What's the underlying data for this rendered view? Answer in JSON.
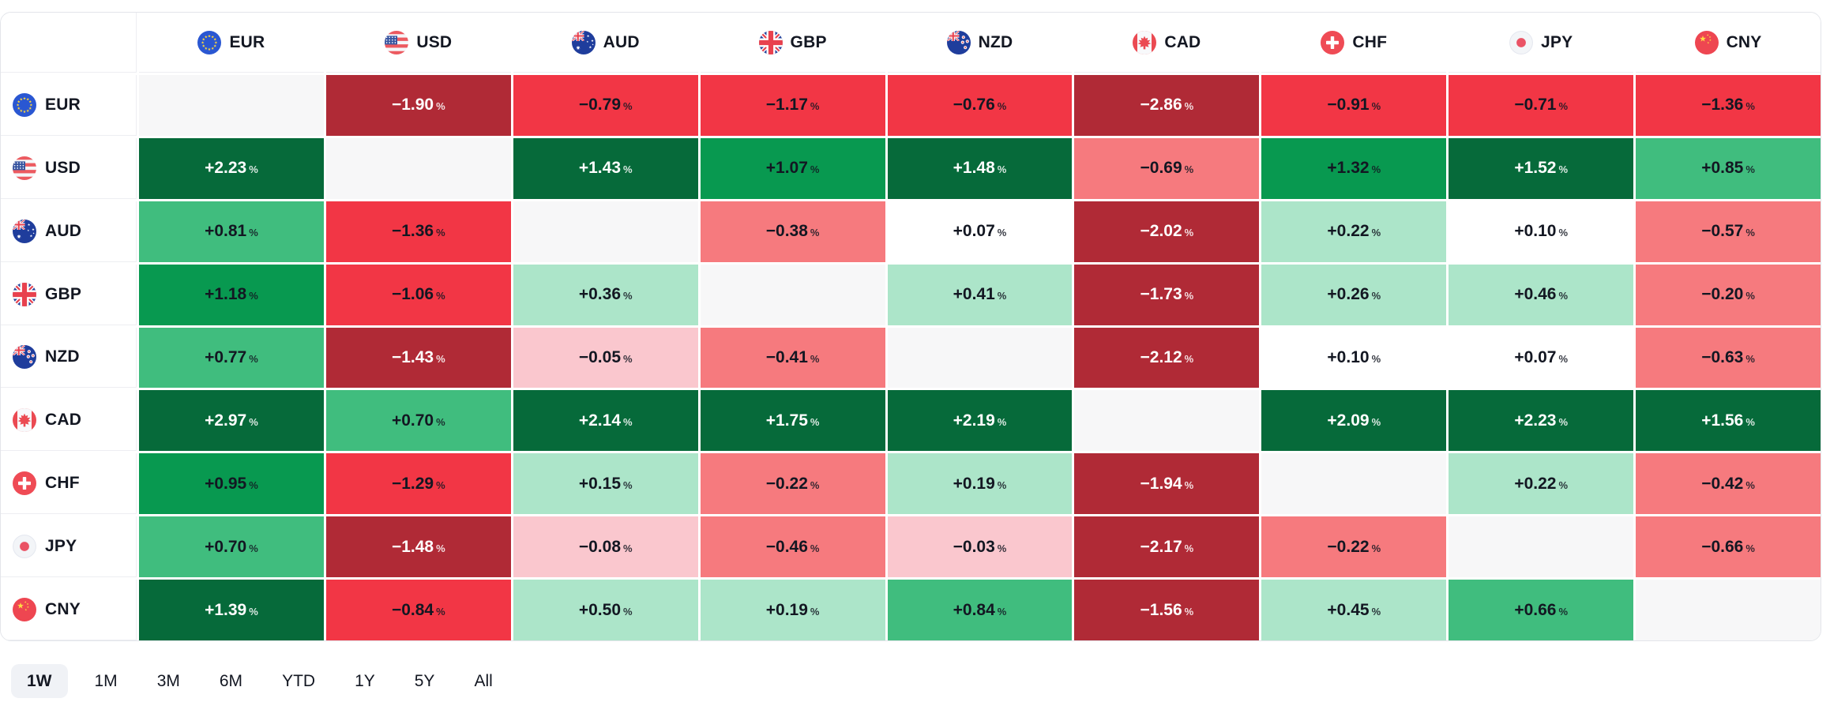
{
  "chart_data": {
    "type": "heatmap",
    "title": "",
    "unit": "%",
    "rows": [
      "EUR",
      "USD",
      "AUD",
      "GBP",
      "NZD",
      "CAD",
      "CHF",
      "JPY",
      "CNY"
    ],
    "columns": [
      "EUR",
      "USD",
      "AUD",
      "GBP",
      "NZD",
      "CAD",
      "CHF",
      "JPY",
      "CNY"
    ],
    "matrix": [
      [
        null,
        -1.9,
        -0.79,
        -1.17,
        -0.76,
        -2.86,
        -0.91,
        -0.71,
        -1.36
      ],
      [
        2.23,
        null,
        1.43,
        1.07,
        1.48,
        -0.69,
        1.32,
        1.52,
        0.85
      ],
      [
        0.81,
        -1.36,
        null,
        -0.38,
        0.07,
        -2.02,
        0.22,
        0.1,
        -0.57
      ],
      [
        1.18,
        -1.06,
        0.36,
        null,
        0.41,
        -1.73,
        0.26,
        0.46,
        -0.2
      ],
      [
        0.77,
        -1.43,
        -0.05,
        -0.41,
        null,
        -2.12,
        0.1,
        0.07,
        -0.63
      ],
      [
        2.97,
        0.7,
        2.14,
        1.75,
        2.19,
        null,
        2.09,
        2.23,
        1.56
      ],
      [
        0.95,
        -1.29,
        0.15,
        -0.22,
        0.19,
        -1.94,
        null,
        0.22,
        -0.42
      ],
      [
        0.7,
        -1.48,
        -0.08,
        -0.46,
        -0.03,
        -2.17,
        -0.22,
        null,
        -0.66
      ],
      [
        1.39,
        -0.84,
        0.5,
        0.19,
        0.84,
        -1.56,
        0.45,
        0.66,
        null
      ]
    ],
    "icons": {
      "EUR": "eur-flag-icon",
      "USD": "usd-flag-icon",
      "AUD": "aud-flag-icon",
      "GBP": "gbp-flag-icon",
      "NZD": "nzd-flag-icon",
      "CAD": "cad-flag-icon",
      "CHF": "chf-flag-icon",
      "JPY": "jpy-flag-icon",
      "CNY": "cny-flag-icon"
    },
    "palette": {
      "diagonal_bg": "#F7F7F8",
      "bands": [
        {
          "min": 1.35,
          "bg": "#066A3A",
          "text": "#FFFFFF"
        },
        {
          "min": 0.9,
          "bg": "#089950",
          "text": "#131722"
        },
        {
          "min": 0.6,
          "bg": "#40BD7E",
          "text": "#131722"
        },
        {
          "min": 0.12,
          "bg": "#ACE5C9",
          "text": "#131722"
        },
        {
          "min": 0.0,
          "bg": "#FFFFFF",
          "text": "#131722"
        },
        {
          "min": -0.12,
          "bg": "#FAC7CE",
          "text": "#131722"
        },
        {
          "min": -0.7,
          "bg": "#F67A7E",
          "text": "#131722"
        },
        {
          "min": -1.4,
          "bg": "#F23645",
          "text": "#131722"
        },
        {
          "min": -999,
          "bg": "#B02A36",
          "text": "#FFFFFF"
        }
      ]
    },
    "legend": "none",
    "grid": "white 3px gaps between cells"
  },
  "periods": {
    "options": [
      "1W",
      "1M",
      "3M",
      "6M",
      "YTD",
      "1Y",
      "5Y",
      "All"
    ],
    "selected": "1W"
  }
}
